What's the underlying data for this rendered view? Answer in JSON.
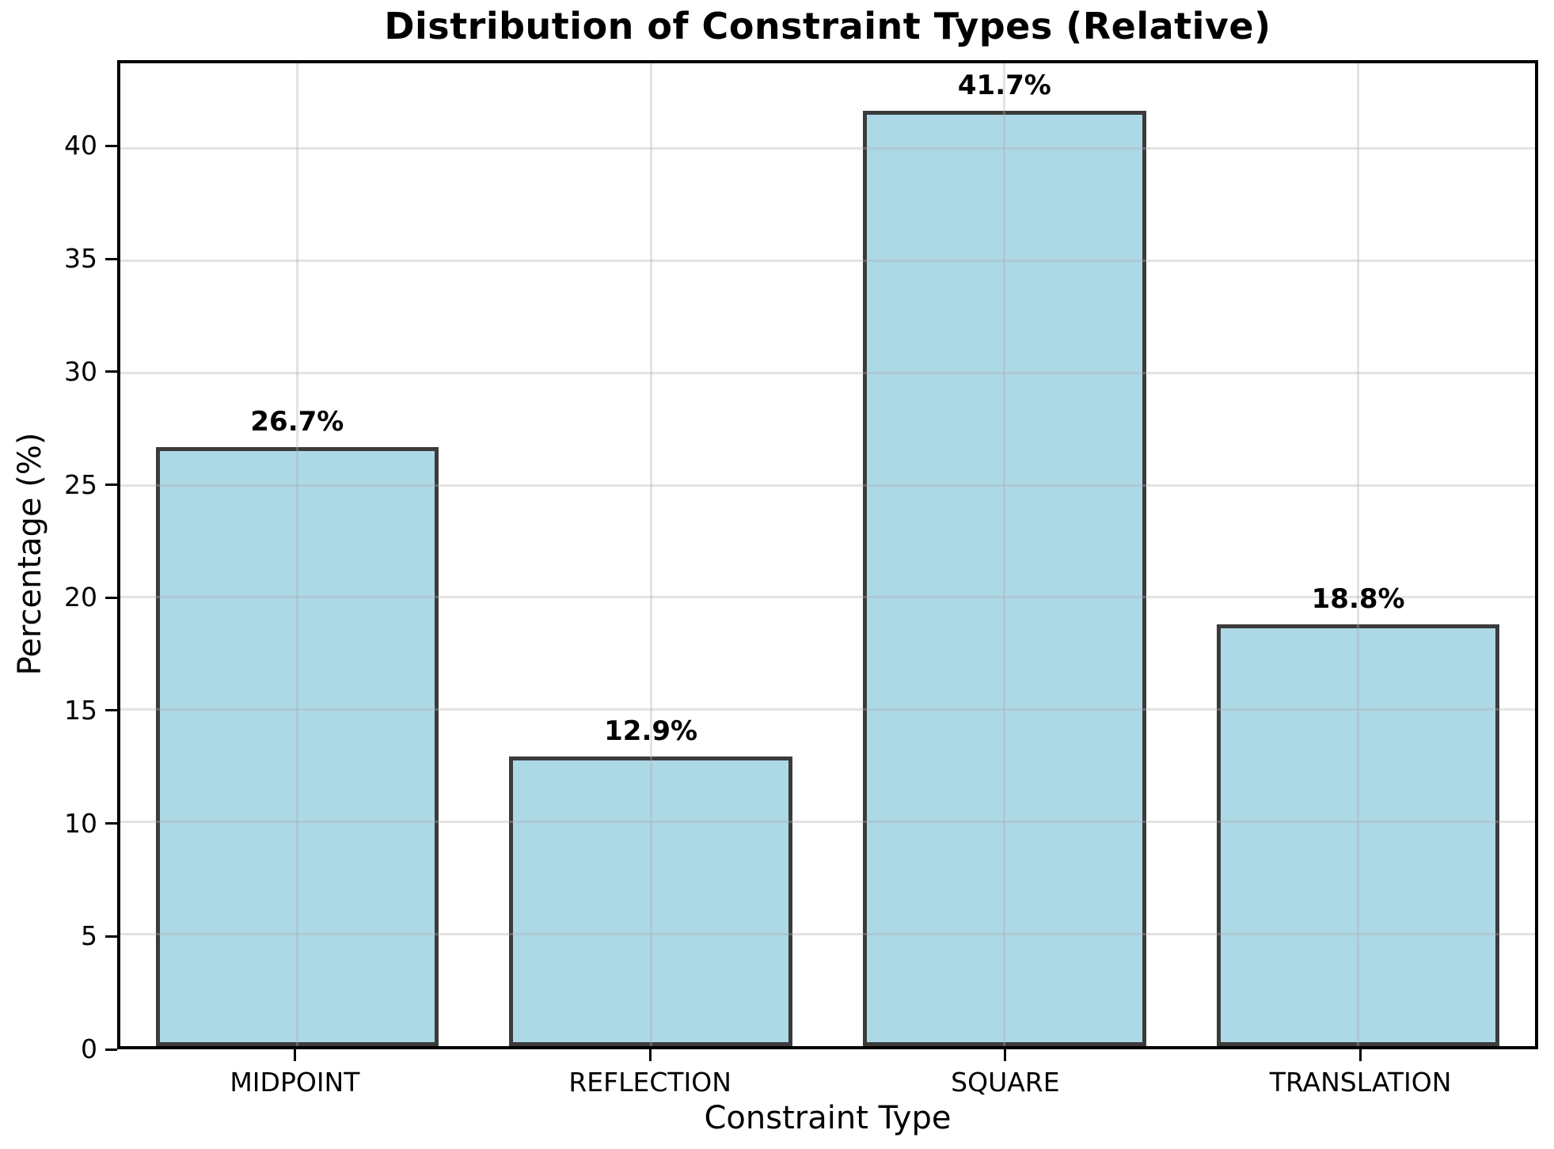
{
  "chart_data": {
    "type": "bar",
    "title": "Distribution of Constraint Types (Relative)",
    "xlabel": "Constraint Type",
    "ylabel": "Percentage (%)",
    "categories": [
      "MIDPOINT",
      "REFLECTION",
      "SQUARE",
      "TRANSLATION"
    ],
    "values": [
      26.7,
      12.9,
      41.7,
      18.8
    ],
    "bar_labels": [
      "26.7%",
      "12.9%",
      "41.7%",
      "18.8%"
    ],
    "ylim": [
      0,
      43.8
    ],
    "yticks": [
      0,
      5,
      10,
      15,
      20,
      25,
      30,
      35,
      40
    ],
    "grid": true,
    "legend": "none",
    "bar_width_fraction": 0.2,
    "colors": {
      "bar_fill": "#ADD8E6",
      "bar_edge": "#3B3B3B",
      "grid": "rgba(176,176,176,0.35)",
      "axis": "#000000",
      "text": "#000000",
      "background": "#FFFFFF"
    }
  }
}
